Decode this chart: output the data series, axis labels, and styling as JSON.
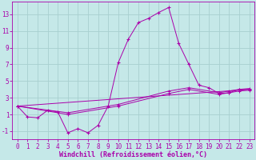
{
  "xlabel": "Windchill (Refroidissement éolien,°C)",
  "background_color": "#c5e8e8",
  "grid_color": "#a8d0d0",
  "line_color": "#aa00aa",
  "xlim": [
    -0.5,
    23.5
  ],
  "ylim": [
    -2.0,
    14.5
  ],
  "xticks": [
    0,
    1,
    2,
    3,
    4,
    5,
    6,
    7,
    8,
    9,
    10,
    11,
    12,
    13,
    14,
    15,
    16,
    17,
    18,
    19,
    20,
    21,
    22,
    23
  ],
  "yticks": [
    -1,
    1,
    3,
    5,
    7,
    9,
    11,
    13
  ],
  "series1_x": [
    0,
    1,
    2,
    3,
    4,
    5,
    6,
    7,
    8,
    9,
    10,
    11,
    12,
    13,
    14,
    15,
    16,
    17,
    18,
    19,
    20,
    21,
    22,
    23
  ],
  "series1_y": [
    2.0,
    0.7,
    0.6,
    1.5,
    1.3,
    -1.2,
    -0.7,
    -1.2,
    -0.3,
    2.0,
    7.2,
    10.0,
    12.0,
    12.5,
    13.2,
    13.8,
    9.5,
    7.0,
    4.5,
    4.2,
    3.5,
    3.6,
    4.0,
    4.0
  ],
  "trend1_x": [
    0,
    23
  ],
  "trend1_y": [
    2.0,
    4.0
  ],
  "trend2_x": [
    0,
    5,
    10,
    15,
    17,
    20,
    21,
    22,
    23
  ],
  "trend2_y": [
    2.0,
    1.2,
    2.2,
    3.8,
    4.2,
    3.6,
    3.8,
    4.0,
    4.1
  ],
  "trend3_x": [
    0,
    5,
    10,
    15,
    17,
    20,
    21,
    22,
    23
  ],
  "trend3_y": [
    2.0,
    1.0,
    2.0,
    3.5,
    4.0,
    3.4,
    3.6,
    3.8,
    3.9
  ],
  "tick_fontsize": 5.5,
  "xlabel_fontsize": 6.0
}
